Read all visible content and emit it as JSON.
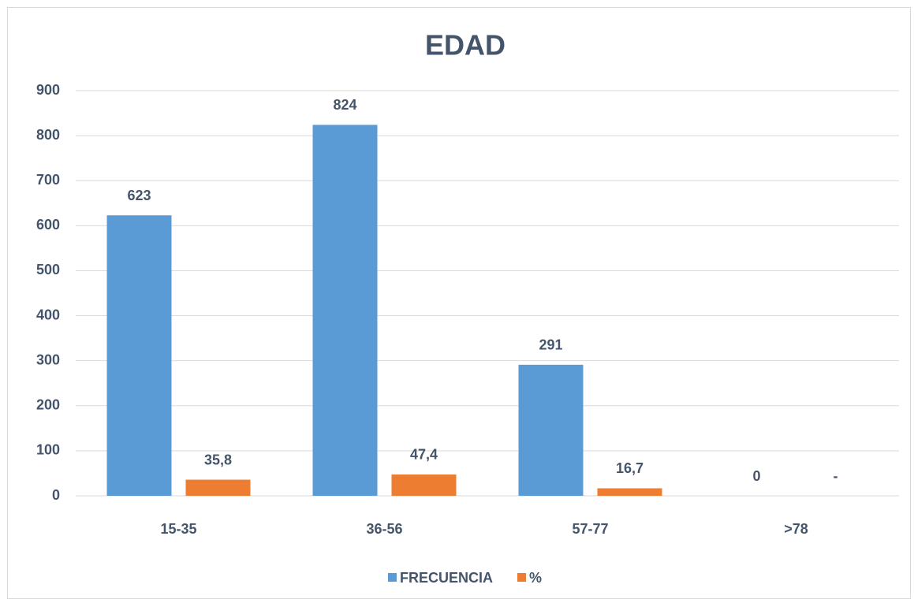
{
  "chart_data": {
    "type": "bar",
    "title": "EDAD",
    "categories": [
      "15-35",
      "36-56",
      "57-77",
      ">78"
    ],
    "series": [
      {
        "name": "FRECUENCIA",
        "color": "#5b9bd5",
        "values": [
          623,
          824,
          291,
          0
        ]
      },
      {
        "name": "%",
        "color": "#ed7d31",
        "values": [
          35.8,
          47.4,
          16.7,
          0
        ],
        "value_labels": [
          "35,8",
          "47,4",
          "16,7",
          "-"
        ]
      }
    ],
    "ylim": [
      0,
      900
    ],
    "yticks": [
      0,
      100,
      200,
      300,
      400,
      500,
      600,
      700,
      800,
      900
    ],
    "grid": true,
    "legend": "bottom"
  }
}
